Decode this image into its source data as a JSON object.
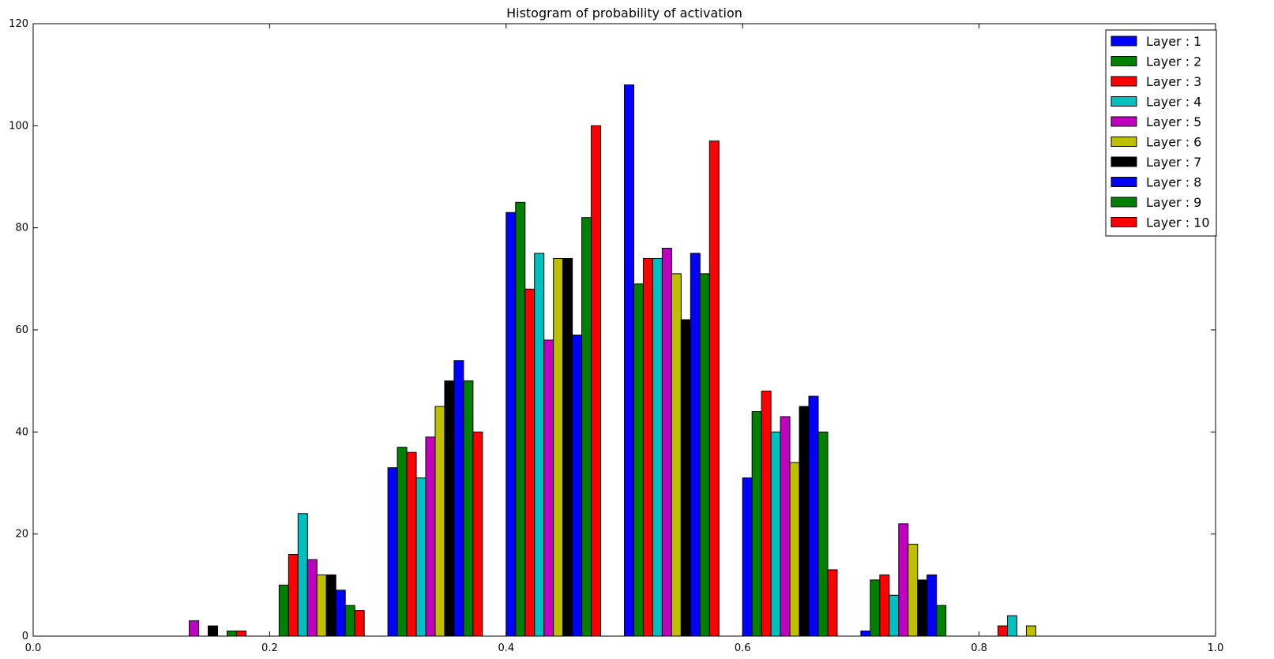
{
  "chart_data": {
    "type": "bar",
    "title": "Histogram of probability of activation",
    "xlabel": "",
    "ylabel": "",
    "xlim": [
      0.0,
      1.0
    ],
    "ylim": [
      0,
      120
    ],
    "xticks": [
      "0.0",
      "0.2",
      "0.4",
      "0.6",
      "0.8",
      "1.0"
    ],
    "yticks": [
      "0",
      "20",
      "40",
      "60",
      "80",
      "100",
      "120"
    ],
    "grid": false,
    "legend_position": "top-right",
    "bins": [
      [
        0.0,
        0.1
      ],
      [
        0.1,
        0.2
      ],
      [
        0.2,
        0.3
      ],
      [
        0.3,
        0.4
      ],
      [
        0.4,
        0.5
      ],
      [
        0.5,
        0.6
      ],
      [
        0.6,
        0.7
      ],
      [
        0.7,
        0.8
      ],
      [
        0.8,
        0.9
      ],
      [
        0.9,
        1.0
      ]
    ],
    "series": [
      {
        "name": "Layer : 1",
        "color": "#0000ff",
        "values": [
          0,
          0,
          0,
          33,
          83,
          108,
          31,
          1,
          0,
          0
        ]
      },
      {
        "name": "Layer : 2",
        "color": "#008000",
        "values": [
          0,
          0,
          10,
          37,
          85,
          69,
          44,
          11,
          0,
          0
        ]
      },
      {
        "name": "Layer : 3",
        "color": "#ff0000",
        "values": [
          0,
          0,
          16,
          36,
          68,
          74,
          48,
          12,
          2,
          0
        ]
      },
      {
        "name": "Layer : 4",
        "color": "#00bfbf",
        "values": [
          0,
          0,
          24,
          31,
          75,
          74,
          40,
          8,
          4,
          0
        ]
      },
      {
        "name": "Layer : 5",
        "color": "#bf00bf",
        "values": [
          0,
          3,
          15,
          39,
          58,
          76,
          43,
          22,
          0,
          0
        ]
      },
      {
        "name": "Layer : 6",
        "color": "#bfbf00",
        "values": [
          0,
          0,
          12,
          45,
          74,
          71,
          34,
          18,
          2,
          0
        ]
      },
      {
        "name": "Layer : 7",
        "color": "#000000",
        "values": [
          0,
          2,
          12,
          50,
          74,
          62,
          45,
          11,
          0,
          0
        ]
      },
      {
        "name": "Layer : 8",
        "color": "#0000ff",
        "values": [
          0,
          0,
          9,
          54,
          59,
          75,
          47,
          12,
          0,
          0
        ]
      },
      {
        "name": "Layer : 9",
        "color": "#008000",
        "values": [
          0,
          1,
          6,
          50,
          82,
          71,
          40,
          6,
          0,
          0
        ]
      },
      {
        "name": "Layer : 10",
        "color": "#ff0000",
        "values": [
          0,
          1,
          5,
          40,
          100,
          97,
          13,
          0,
          0,
          0
        ]
      }
    ]
  }
}
